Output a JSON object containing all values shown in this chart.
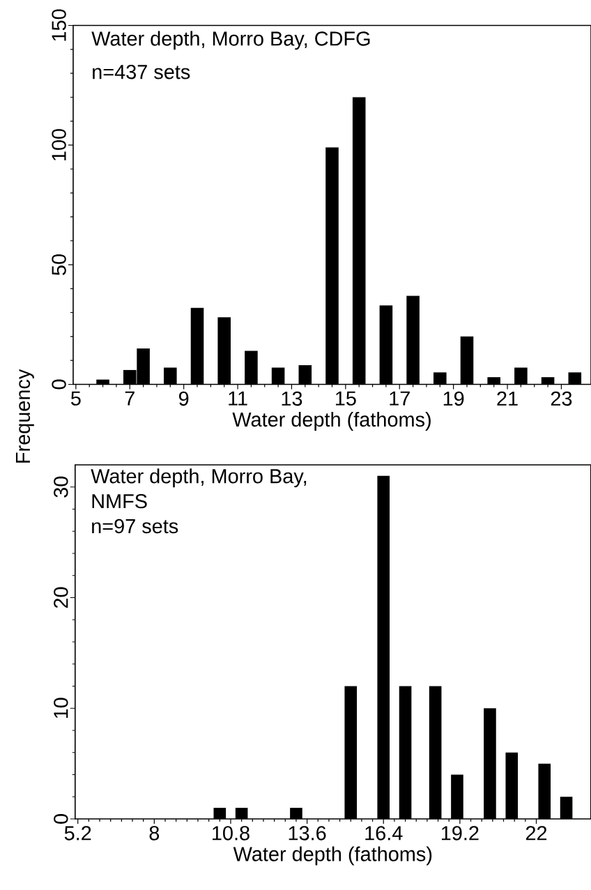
{
  "chart_data": [
    {
      "type": "bar",
      "xlabel": "Water depth (fathoms)",
      "ylabel": "Frequency",
      "annotations": [
        "Water depth, Morro Bay, CDFG",
        "n=437 sets"
      ],
      "x": [
        6,
        7,
        7.5,
        8.5,
        9.5,
        10.5,
        11.5,
        12.5,
        13.5,
        14.5,
        15.5,
        16.5,
        17.5,
        18.5,
        19.5,
        20.5,
        21.5,
        22.5,
        23.5
      ],
      "values": [
        2,
        6,
        15,
        7,
        32,
        28,
        14,
        7,
        8,
        99,
        120,
        33,
        37,
        5,
        20,
        3,
        7,
        3,
        5
      ],
      "color": "#000000",
      "xlim": [
        4.9,
        24.1
      ],
      "ylim": [
        0,
        150
      ],
      "xticks": [
        5,
        7,
        9,
        11,
        13,
        15,
        17,
        19,
        21,
        23
      ],
      "yticks": [
        0,
        50,
        100,
        150
      ]
    },
    {
      "type": "bar",
      "xlabel": "Water depth (fathoms)",
      "annotations": [
        "Water depth, Morro Bay,",
        "NMFS",
        "n=97 sets"
      ],
      "x": [
        10.4,
        11.2,
        13.2,
        15.2,
        16.4,
        17.2,
        18.3,
        19.1,
        20.3,
        21.1,
        22.3,
        23.1
      ],
      "values": [
        1,
        1,
        1,
        12,
        31,
        12,
        12,
        4,
        10,
        6,
        5,
        2
      ],
      "color": "#000000",
      "xlim": [
        5.1,
        24
      ],
      "ylim": [
        0,
        32
      ],
      "xticks": [
        5.2,
        8,
        10.8,
        13.6,
        16.4,
        19.2,
        22
      ],
      "yticks": [
        0,
        10,
        20,
        30
      ]
    }
  ]
}
